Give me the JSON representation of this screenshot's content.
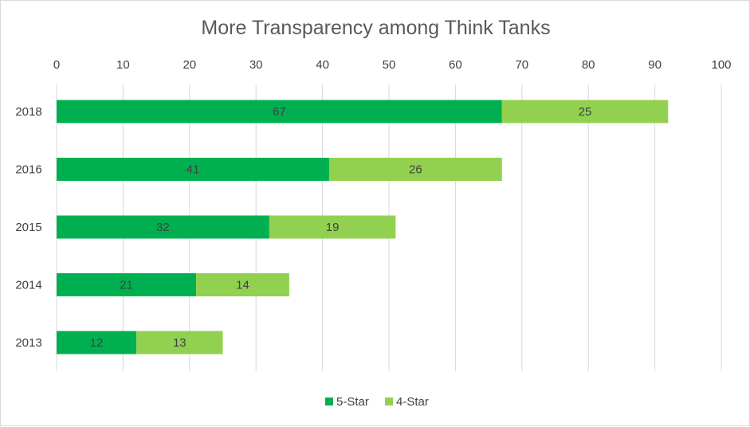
{
  "chart_data": {
    "type": "bar",
    "orientation": "horizontal",
    "stacked": true,
    "title": "More Transparency among Think Tanks",
    "categories": [
      "2018",
      "2016",
      "2015",
      "2014",
      "2013"
    ],
    "series": [
      {
        "name": "5-Star",
        "color": "#00b050",
        "values": [
          67,
          41,
          32,
          21,
          12
        ]
      },
      {
        "name": "4-Star",
        "color": "#92d050",
        "values": [
          25,
          26,
          19,
          14,
          13
        ]
      }
    ],
    "xlim": [
      0,
      100
    ],
    "x_ticks": [
      0,
      10,
      20,
      30,
      40,
      50,
      60,
      70,
      80,
      90,
      100
    ],
    "axis_position": "top",
    "grid": true,
    "data_labels": true,
    "legend": "bottom"
  }
}
